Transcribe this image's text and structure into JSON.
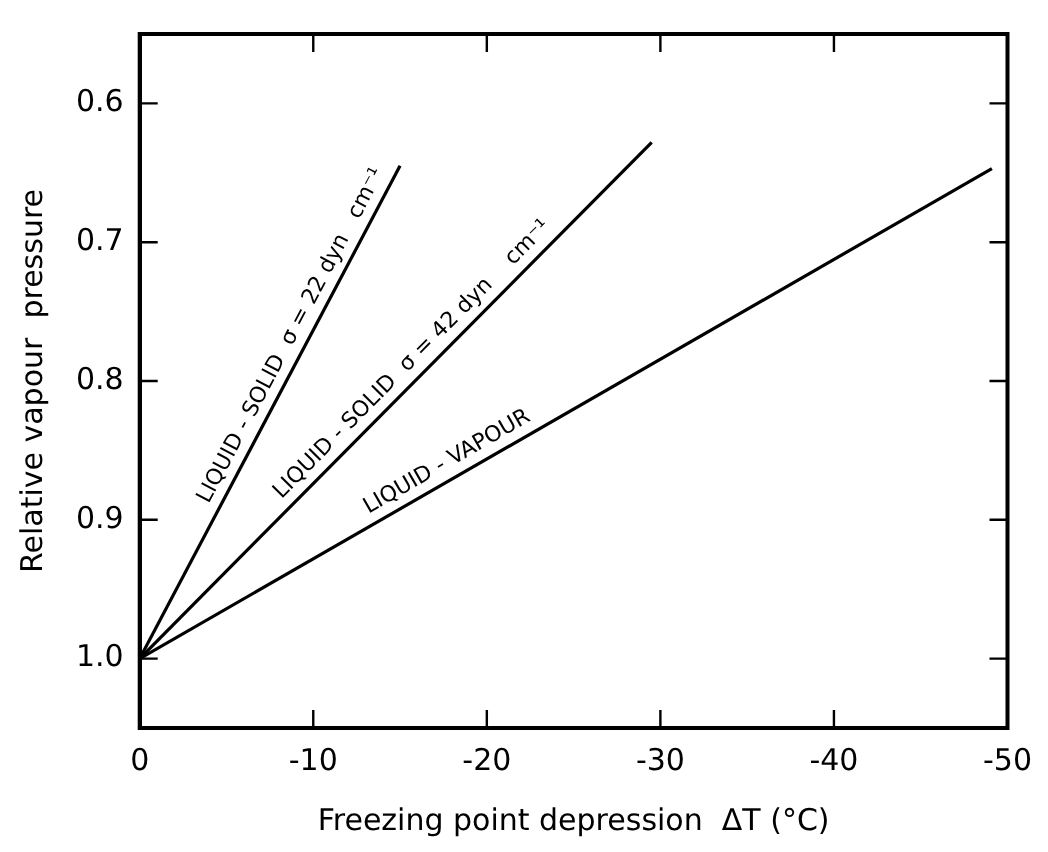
{
  "chart_data": {
    "type": "line",
    "xlabel": "Freezing point depression  ΔT (°C)",
    "ylabel": "Relative vapour  pressure",
    "xlim": [
      0,
      -50
    ],
    "xticks": [
      0,
      -10,
      -20,
      -30,
      -40,
      -50
    ],
    "ylim": [
      1.05,
      0.55
    ],
    "yticks": [
      0.6,
      0.7,
      0.8,
      0.9,
      {
        "value": 1,
        "label": "1.0"
      }
    ],
    "grid": false,
    "legend": false,
    "marker": "none",
    "line_style": "solid",
    "series": [
      {
        "color": "#000000",
        "x": [
          0,
          -15
        ],
        "values": [
          1,
          0.645
        ]
      },
      {
        "color": "#000000",
        "x": [
          0,
          -29.5
        ],
        "values": [
          1,
          0.628
        ]
      },
      {
        "color": "#000000",
        "x": [
          0,
          -49.1
        ],
        "values": [
          1,
          0.647
        ]
      }
    ],
    "annotations": [
      {
        "text": "LIQUID - SOLID  σ = 22 dyn   cm⁻¹",
        "x": -9.6,
        "y": 0.773
      },
      {
        "text": "LIQUID - SOLID  σ = 42 dyn    cm⁻¹",
        "x": -16.4,
        "y": 0.793
      },
      {
        "text": "LIQUID - VAPOUR",
        "x": -18.2,
        "y": 0.869
      }
    ]
  }
}
